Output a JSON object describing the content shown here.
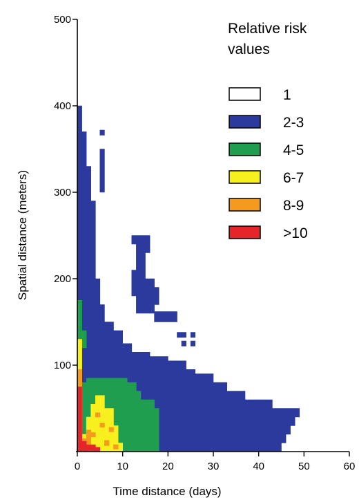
{
  "chart_data": {
    "type": "heatmap",
    "xlabel": "Time distance (days)",
    "ylabel": "Spatial distance (meters)",
    "xlim": [
      0,
      60
    ],
    "ylim": [
      0,
      500
    ],
    "xticks": [
      "0",
      "10",
      "20",
      "30",
      "40",
      "50",
      "60"
    ],
    "yticks": [
      "100",
      "200",
      "300",
      "400",
      "500"
    ],
    "grid": false,
    "legend_position": "top-right",
    "legend": {
      "title_lines": [
        "Relative risk",
        "values"
      ],
      "items": [
        {
          "label": "1",
          "color": "#ffffff"
        },
        {
          "label": "2-3",
          "color": "#2b3a9c"
        },
        {
          "label": "4-5",
          "color": "#1e9e4e"
        },
        {
          "label": "6-7",
          "color": "#f7ef1e"
        },
        {
          "label": "8-9",
          "color": "#f49a1e"
        },
        {
          "label": ">10",
          "color": "#e4262a"
        }
      ]
    },
    "regions": [
      {
        "category": "2-3",
        "polygon": [
          [
            0,
            400
          ],
          [
            1,
            400
          ],
          [
            1,
            370
          ],
          [
            2,
            370
          ],
          [
            2,
            330
          ],
          [
            3,
            330
          ],
          [
            3,
            270
          ],
          [
            4,
            270
          ],
          [
            4,
            200
          ],
          [
            5,
            200
          ],
          [
            5,
            170
          ],
          [
            6,
            170
          ],
          [
            6,
            150
          ],
          [
            8,
            150
          ],
          [
            8,
            140
          ],
          [
            10,
            140
          ],
          [
            10,
            125
          ],
          [
            12,
            125
          ],
          [
            12,
            115
          ],
          [
            16,
            115
          ],
          [
            16,
            110
          ],
          [
            20,
            110
          ],
          [
            20,
            105
          ],
          [
            24,
            105
          ],
          [
            24,
            95
          ],
          [
            26,
            95
          ],
          [
            26,
            90
          ],
          [
            30,
            90
          ],
          [
            30,
            80
          ],
          [
            33,
            80
          ],
          [
            33,
            70
          ],
          [
            37,
            70
          ],
          [
            37,
            60
          ],
          [
            43,
            60
          ],
          [
            43,
            50
          ],
          [
            49,
            50
          ],
          [
            49,
            40
          ],
          [
            48,
            40
          ],
          [
            48,
            30
          ],
          [
            47,
            30
          ],
          [
            47,
            20
          ],
          [
            46,
            20
          ],
          [
            46,
            10
          ],
          [
            45,
            10
          ],
          [
            45,
            0
          ],
          [
            0,
            0
          ]
        ]
      },
      {
        "category": "2-3",
        "polygon": [
          [
            12,
            250
          ],
          [
            16,
            250
          ],
          [
            16,
            230
          ],
          [
            15,
            230
          ],
          [
            15,
            200
          ],
          [
            17,
            200
          ],
          [
            17,
            190
          ],
          [
            18,
            190
          ],
          [
            18,
            170
          ],
          [
            17,
            170
          ],
          [
            17,
            160
          ],
          [
            13,
            160
          ],
          [
            13,
            180
          ],
          [
            12,
            180
          ],
          [
            12,
            210
          ],
          [
            13,
            210
          ],
          [
            13,
            240
          ],
          [
            12,
            240
          ]
        ]
      },
      {
        "category": "2-3",
        "polygon": [
          [
            5,
            350
          ],
          [
            6,
            350
          ],
          [
            6,
            300
          ],
          [
            5,
            300
          ]
        ]
      },
      {
        "category": "2-3",
        "polygon": [
          [
            5,
            372
          ],
          [
            6,
            372
          ],
          [
            6,
            366
          ],
          [
            5,
            366
          ]
        ]
      },
      {
        "category": "2-3",
        "polygon": [
          [
            2,
            290
          ],
          [
            4,
            290
          ],
          [
            4,
            270
          ],
          [
            2,
            270
          ]
        ]
      },
      {
        "category": "2-3",
        "polygon": [
          [
            17,
            162
          ],
          [
            22,
            162
          ],
          [
            22,
            150
          ],
          [
            17,
            150
          ]
        ]
      },
      {
        "category": "2-3",
        "polygon": [
          [
            22,
            138
          ],
          [
            24,
            138
          ],
          [
            24,
            132
          ],
          [
            22,
            132
          ]
        ]
      },
      {
        "category": "2-3",
        "polygon": [
          [
            25,
            138
          ],
          [
            26,
            138
          ],
          [
            26,
            132
          ],
          [
            25,
            132
          ]
        ]
      },
      {
        "category": "2-3",
        "polygon": [
          [
            23,
            128
          ],
          [
            24,
            128
          ],
          [
            24,
            122
          ],
          [
            23,
            122
          ]
        ]
      },
      {
        "category": "2-3",
        "polygon": [
          [
            25,
            128
          ],
          [
            26,
            128
          ],
          [
            26,
            122
          ],
          [
            25,
            122
          ]
        ]
      },
      {
        "category": "4-5",
        "polygon": [
          [
            0,
            175
          ],
          [
            1,
            175
          ],
          [
            1,
            80
          ],
          [
            2,
            80
          ],
          [
            2,
            85
          ],
          [
            11,
            85
          ],
          [
            11,
            80
          ],
          [
            13,
            80
          ],
          [
            13,
            70
          ],
          [
            14,
            70
          ],
          [
            14,
            60
          ],
          [
            17,
            60
          ],
          [
            17,
            50
          ],
          [
            18,
            50
          ],
          [
            18,
            0
          ],
          [
            0,
            0
          ]
        ]
      },
      {
        "category": "4-5",
        "polygon": [
          [
            1,
            140
          ],
          [
            2,
            140
          ],
          [
            2,
            120
          ],
          [
            1,
            120
          ]
        ]
      },
      {
        "category": "6-7",
        "polygon": [
          [
            0,
            130
          ],
          [
            1,
            130
          ],
          [
            1,
            20
          ],
          [
            2,
            20
          ],
          [
            2,
            40
          ],
          [
            3,
            40
          ],
          [
            3,
            55
          ],
          [
            4,
            55
          ],
          [
            4,
            65
          ],
          [
            6,
            65
          ],
          [
            6,
            50
          ],
          [
            8,
            50
          ],
          [
            8,
            30
          ],
          [
            9,
            30
          ],
          [
            9,
            10
          ],
          [
            10,
            10
          ],
          [
            10,
            0
          ],
          [
            0,
            0
          ]
        ]
      },
      {
        "category": "8-9",
        "polygon": [
          [
            0,
            95
          ],
          [
            1,
            95
          ],
          [
            1,
            15
          ],
          [
            2,
            15
          ],
          [
            2,
            25
          ],
          [
            3,
            25
          ],
          [
            3,
            0
          ],
          [
            0,
            0
          ]
        ]
      },
      {
        "category": "8-9",
        "polygon": [
          [
            4,
            45
          ],
          [
            5,
            45
          ],
          [
            5,
            40
          ],
          [
            4,
            40
          ]
        ]
      },
      {
        "category": "8-9",
        "polygon": [
          [
            5,
            33
          ],
          [
            6,
            33
          ],
          [
            6,
            28
          ],
          [
            5,
            28
          ]
        ]
      },
      {
        "category": "8-9",
        "polygon": [
          [
            3,
            22
          ],
          [
            4,
            22
          ],
          [
            4,
            17
          ],
          [
            3,
            17
          ]
        ]
      },
      {
        "category": "8-9",
        "polygon": [
          [
            6,
            13
          ],
          [
            7,
            13
          ],
          [
            7,
            7
          ],
          [
            6,
            7
          ]
        ]
      },
      {
        "category": "8-9",
        "polygon": [
          [
            7,
            28
          ],
          [
            8,
            28
          ],
          [
            8,
            23
          ],
          [
            7,
            23
          ]
        ]
      },
      {
        "category": "8-9",
        "polygon": [
          [
            8,
            8
          ],
          [
            9,
            8
          ],
          [
            9,
            3
          ],
          [
            8,
            3
          ]
        ]
      },
      {
        "category": ">10",
        "polygon": [
          [
            0,
            75
          ],
          [
            1,
            75
          ],
          [
            1,
            12
          ],
          [
            2,
            12
          ],
          [
            2,
            8
          ],
          [
            4,
            8
          ],
          [
            4,
            0
          ],
          [
            0,
            0
          ]
        ]
      },
      {
        "category": ">10",
        "polygon": [
          [
            4,
            5
          ],
          [
            5,
            5
          ],
          [
            5,
            0
          ],
          [
            4,
            0
          ]
        ]
      }
    ]
  }
}
